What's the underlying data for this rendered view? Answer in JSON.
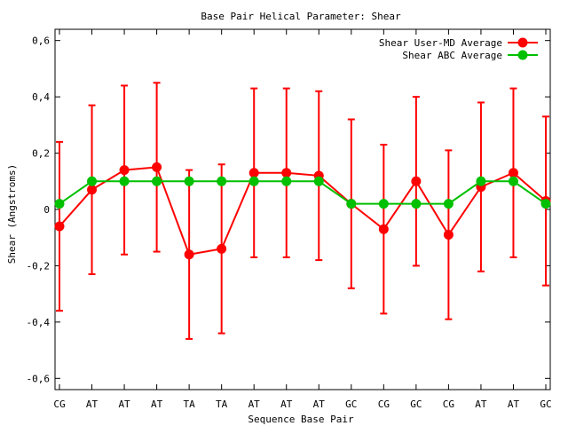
{
  "chart_data": {
    "type": "line",
    "title": "Base Pair Helical Parameter: Shear",
    "xlabel": "Sequence Base Pair",
    "ylabel": "Shear (Angstroms)",
    "categories": [
      "CG",
      "AT",
      "AT",
      "AT",
      "TA",
      "TA",
      "AT",
      "AT",
      "AT",
      "GC",
      "CG",
      "GC",
      "CG",
      "AT",
      "AT",
      "GC"
    ],
    "ylim": [
      -0.64,
      0.64
    ],
    "yticks": [
      -0.6,
      -0.4,
      -0.2,
      0,
      0.2,
      0.4,
      0.6
    ],
    "ytick_labels": [
      "-0,6",
      "-0,4",
      "-0,2",
      "0",
      "0,2",
      "0,4",
      "0,6"
    ],
    "grid": false,
    "legend_position": "top-right",
    "series": [
      {
        "name": "Shear User-MD Average",
        "color": "#ff0000",
        "values": [
          -0.06,
          0.07,
          0.14,
          0.15,
          -0.16,
          -0.14,
          0.13,
          0.13,
          0.12,
          0.02,
          -0.07,
          0.1,
          -0.09,
          0.08,
          0.13,
          0.03
        ],
        "errors": [
          0.3,
          0.3,
          0.3,
          0.3,
          0.3,
          0.3,
          0.3,
          0.3,
          0.3,
          0.3,
          0.3,
          0.3,
          0.3,
          0.3,
          0.3,
          0.3
        ]
      },
      {
        "name": "Shear ABC Average",
        "color": "#00c000",
        "values": [
          0.02,
          0.1,
          0.1,
          0.1,
          0.1,
          0.1,
          0.1,
          0.1,
          0.1,
          0.02,
          0.02,
          0.02,
          0.02,
          0.1,
          0.1,
          0.02
        ]
      }
    ]
  }
}
